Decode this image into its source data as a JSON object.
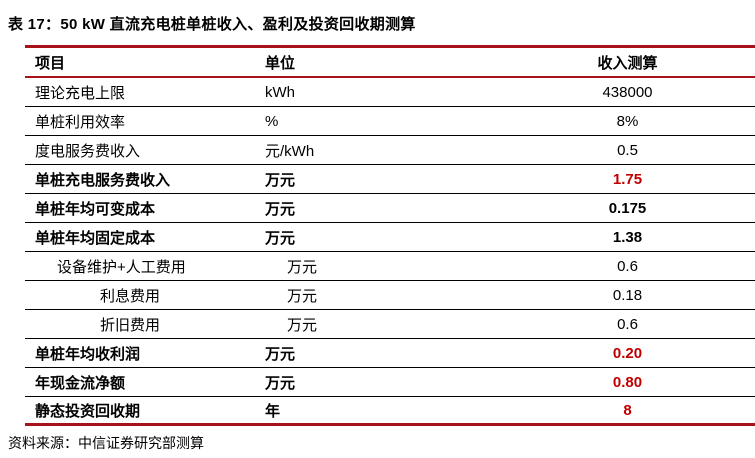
{
  "table": {
    "title": "表 17：50 kW 直流充电桩单桩收入、盈利及投资回收期测算",
    "columns": [
      "项目",
      "单位",
      "收入测算"
    ],
    "rows": [
      {
        "item": "理论充电上限",
        "unit": "kWh",
        "value": "438000",
        "style": "normal",
        "indent": 0,
        "value_color": "black"
      },
      {
        "item": "单桩利用效率",
        "unit": "%",
        "value": "8%",
        "style": "normal",
        "indent": 0,
        "value_color": "black"
      },
      {
        "item": "度电服务费收入",
        "unit": "元/kWh",
        "value": "0.5",
        "style": "normal",
        "indent": 0,
        "value_color": "black"
      },
      {
        "item": "单桩充电服务费收入",
        "unit": "万元",
        "value": "1.75",
        "style": "bold",
        "indent": 0,
        "value_color": "red"
      },
      {
        "item": "单桩年均可变成本",
        "unit": "万元",
        "value": "0.175",
        "style": "bold",
        "indent": 0,
        "value_color": "black"
      },
      {
        "item": "单桩年均固定成本",
        "unit": "万元",
        "value": "1.38",
        "style": "bold",
        "indent": 0,
        "value_color": "black"
      },
      {
        "item": "设备维护+人工费用",
        "unit": "万元",
        "value": "0.6",
        "style": "normal",
        "indent": 1,
        "value_color": "black"
      },
      {
        "item": "利息费用",
        "unit": "万元",
        "value": "0.18",
        "style": "normal",
        "indent": 2,
        "value_color": "black"
      },
      {
        "item": "折旧费用",
        "unit": "万元",
        "value": "0.6",
        "style": "normal",
        "indent": 2,
        "value_color": "black"
      },
      {
        "item": "单桩年均收利润",
        "unit": "万元",
        "value": "0.20",
        "style": "bold",
        "indent": 0,
        "value_color": "red"
      },
      {
        "item": "年现金流净额",
        "unit": "万元",
        "value": "0.80",
        "style": "bold",
        "indent": 0,
        "value_color": "red"
      },
      {
        "item": "静态投资回收期",
        "unit": "年",
        "value": "8",
        "style": "bold",
        "indent": 0,
        "value_color": "red"
      }
    ],
    "source": "资料来源：中信证券研究部测算"
  },
  "colors": {
    "rule_red": "#A8121A",
    "value_red": "#C00000",
    "row_line": "#000000"
  }
}
